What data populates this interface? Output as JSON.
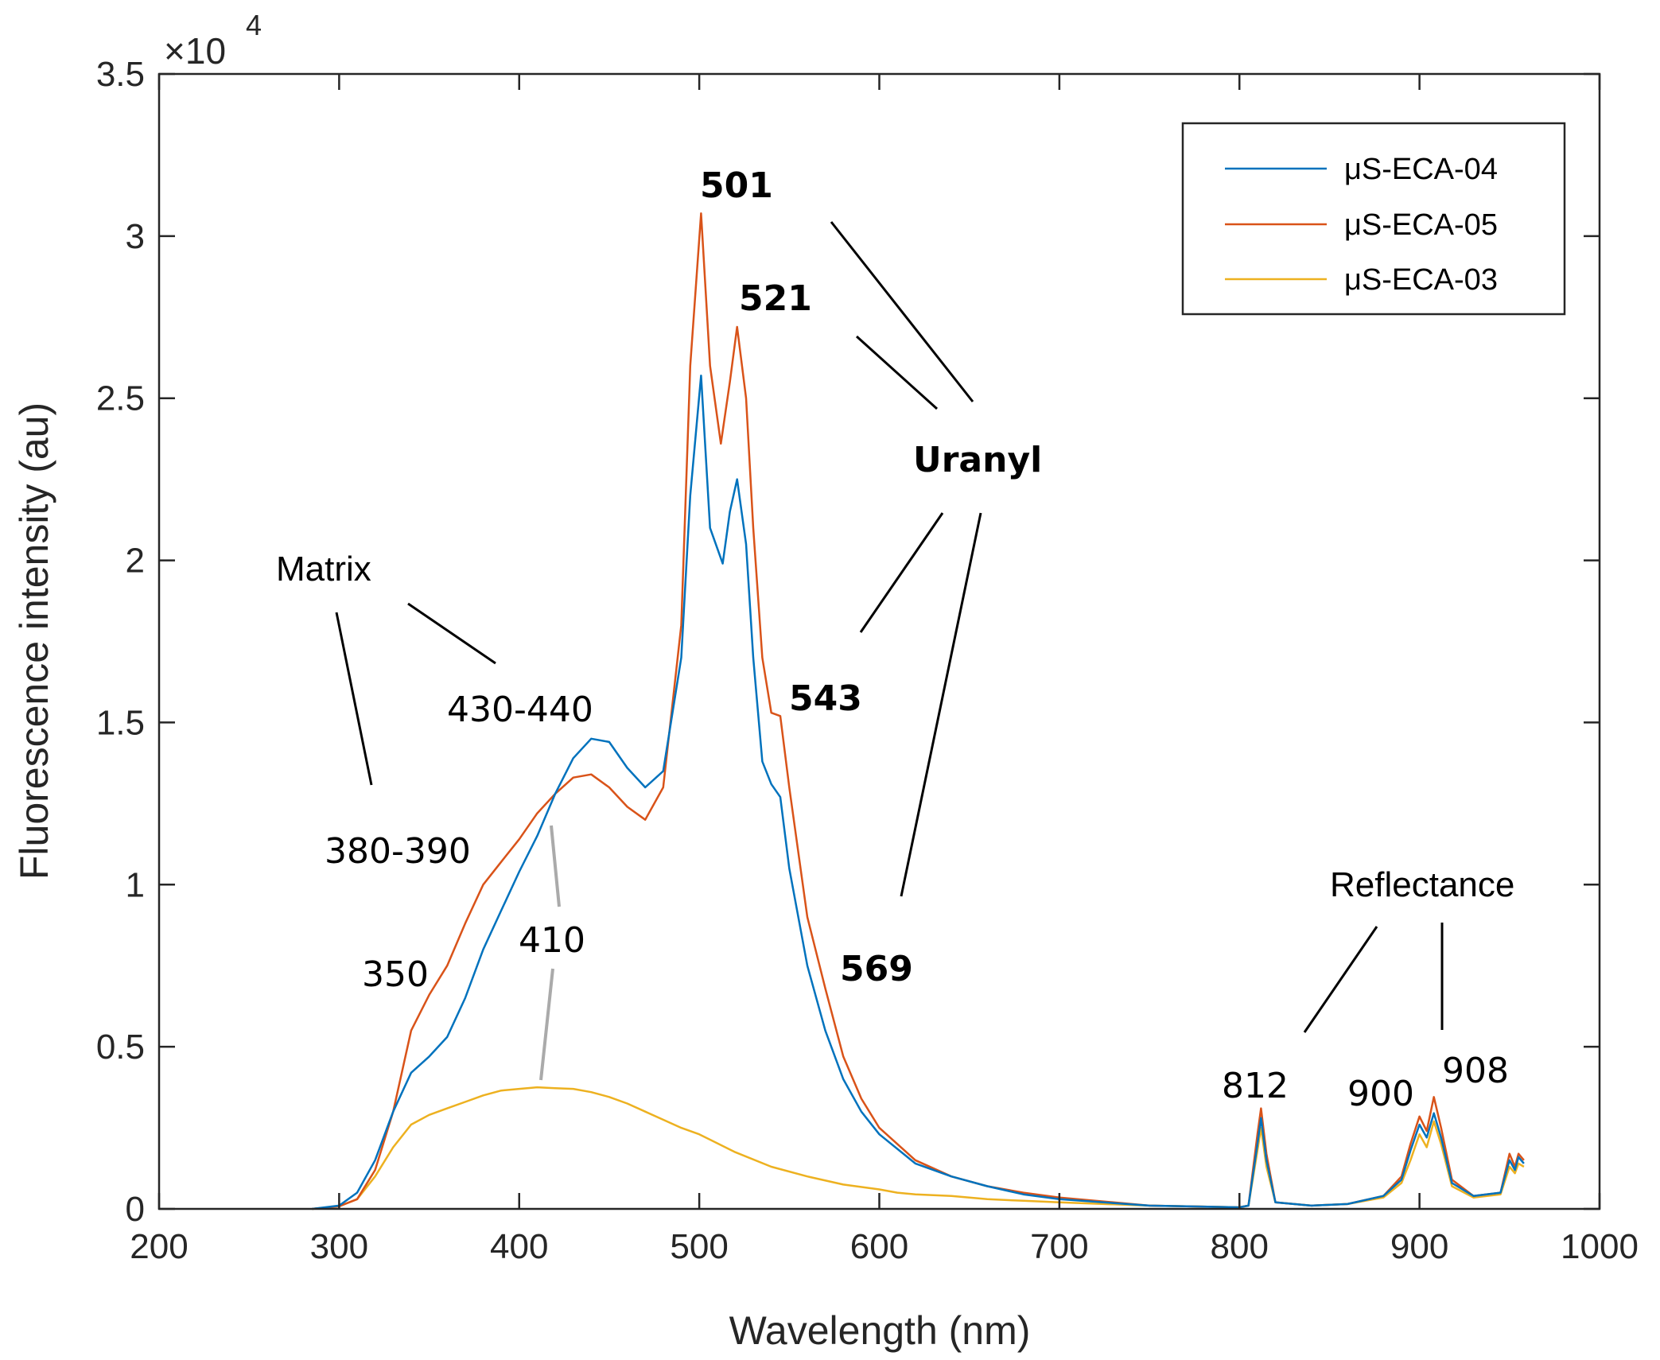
{
  "chart_data": {
    "type": "line",
    "title": "",
    "xlabel": "Wavelength (nm)",
    "ylabel": "Fluorescence intensity (au)",
    "xlim": [
      200,
      1000
    ],
    "ylim": [
      0,
      35000
    ],
    "y_exponent_label": "×10",
    "y_exponent_power": "4",
    "xticks": [
      200,
      300,
      400,
      500,
      600,
      700,
      800,
      900,
      1000
    ],
    "xtick_labels": [
      "200",
      "300",
      "400",
      "500",
      "600",
      "700",
      "800",
      "900",
      "1000"
    ],
    "yticks": [
      0,
      5000,
      10000,
      15000,
      20000,
      25000,
      30000,
      35000
    ],
    "ytick_labels": [
      "0",
      "0.5",
      "1",
      "1.5",
      "2",
      "2.5",
      "3",
      "3.5"
    ],
    "grid": false,
    "legend_position": "top-right",
    "series": [
      {
        "name": "μS-ECA-04",
        "color": "#0072BD",
        "x": [
          285,
          300,
          310,
          320,
          330,
          340,
          350,
          360,
          370,
          380,
          390,
          400,
          410,
          420,
          430,
          440,
          450,
          460,
          470,
          480,
          490,
          495,
          501,
          506,
          513,
          517,
          521,
          526,
          530,
          535,
          540,
          545,
          550,
          560,
          570,
          580,
          590,
          600,
          620,
          640,
          660,
          680,
          700,
          750,
          800,
          805,
          810,
          812,
          815,
          820,
          840,
          860,
          880,
          890,
          895,
          900,
          904,
          908,
          912,
          918,
          930,
          945,
          950,
          953,
          955,
          958
        ],
        "y": [
          0,
          100,
          500,
          1500,
          3000,
          4200,
          4700,
          5300,
          6500,
          8000,
          9200,
          10400,
          11500,
          12800,
          13900,
          14500,
          14400,
          13600,
          13000,
          13500,
          17000,
          22000,
          25700,
          21000,
          19900,
          21500,
          22500,
          20500,
          17000,
          13800,
          13100,
          12700,
          10500,
          7500,
          5500,
          4000,
          3000,
          2300,
          1400,
          1000,
          700,
          450,
          300,
          100,
          50,
          100,
          2000,
          2800,
          1500,
          200,
          100,
          150,
          400,
          900,
          1800,
          2600,
          2200,
          2950,
          2200,
          800,
          400,
          500,
          1500,
          1200,
          1600,
          1400
        ]
      },
      {
        "name": "μS-ECA-05",
        "color": "#D95319",
        "x": [
          285,
          300,
          310,
          320,
          330,
          340,
          350,
          360,
          370,
          380,
          390,
          400,
          410,
          420,
          430,
          440,
          450,
          460,
          470,
          480,
          490,
          495,
          501,
          506,
          512,
          517,
          521,
          526,
          530,
          535,
          540,
          545,
          550,
          560,
          570,
          580,
          590,
          600,
          620,
          640,
          660,
          680,
          700,
          750,
          800,
          805,
          810,
          812,
          815,
          820,
          840,
          860,
          880,
          890,
          895,
          900,
          904,
          908,
          912,
          918,
          930,
          945,
          950,
          953,
          955,
          958
        ],
        "y": [
          0,
          80,
          300,
          1200,
          3000,
          5500,
          6600,
          7500,
          8800,
          10000,
          10700,
          11400,
          12200,
          12800,
          13300,
          13400,
          13000,
          12400,
          12000,
          13000,
          18000,
          26000,
          30700,
          26000,
          23600,
          25500,
          27200,
          25000,
          21000,
          17000,
          15300,
          15200,
          13000,
          9000,
          6800,
          4700,
          3400,
          2500,
          1500,
          1000,
          700,
          500,
          350,
          100,
          50,
          100,
          2300,
          3100,
          1700,
          200,
          100,
          150,
          400,
          1000,
          2000,
          2850,
          2400,
          3450,
          2500,
          900,
          400,
          500,
          1700,
          1300,
          1700,
          1500
        ]
      },
      {
        "name": "μS-ECA-03",
        "color": "#EDB120",
        "x": [
          285,
          300,
          310,
          320,
          330,
          340,
          350,
          360,
          370,
          380,
          390,
          400,
          410,
          420,
          430,
          440,
          450,
          460,
          470,
          480,
          490,
          500,
          520,
          540,
          560,
          580,
          600,
          610,
          620,
          640,
          660,
          680,
          700,
          750,
          800,
          805,
          810,
          812,
          815,
          820,
          840,
          860,
          880,
          890,
          895,
          900,
          904,
          908,
          912,
          918,
          930,
          945,
          950,
          953,
          955,
          958
        ],
        "y": [
          0,
          80,
          300,
          1000,
          1900,
          2600,
          2900,
          3100,
          3300,
          3500,
          3650,
          3700,
          3750,
          3720,
          3700,
          3600,
          3450,
          3250,
          3000,
          2750,
          2500,
          2300,
          1750,
          1300,
          1000,
          750,
          600,
          500,
          450,
          400,
          300,
          250,
          200,
          100,
          50,
          100,
          1800,
          2500,
          1300,
          200,
          100,
          150,
          350,
          800,
          1500,
          2300,
          1900,
          2700,
          2000,
          700,
          350,
          450,
          1300,
          1100,
          1400,
          1300
        ]
      }
    ],
    "annotations": {
      "matrix": {
        "label": "Matrix",
        "peaks": [
          "350",
          "380-390",
          "410",
          "430-440"
        ]
      },
      "uranyl": {
        "label": "Uranyl",
        "peaks": [
          "501",
          "521",
          "543",
          "569"
        ]
      },
      "reflectance": {
        "label": "Reflectance",
        "peaks": [
          "812",
          "900",
          "908"
        ]
      }
    }
  }
}
